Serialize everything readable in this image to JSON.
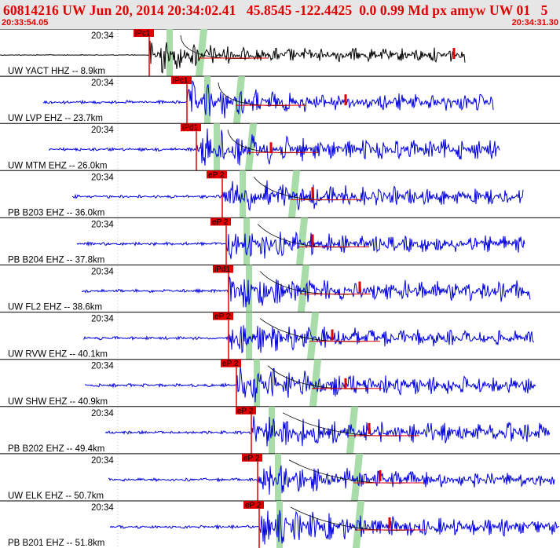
{
  "header": {
    "title": "60814216 UW Jun 20, 2014 20:34:02.41   45.8545 -122.4425  0.0 0.99 Md px amyw UW 01   5",
    "start_time": "20:33:54.05",
    "end_time": "20:34:31.30"
  },
  "colors": {
    "header_bg": "#e6e6e6",
    "header_text": "#e00000",
    "trace_blue": "#0000dd",
    "trace_black": "#000000",
    "pick_red": "#e00000",
    "window_green": "#a8dca8"
  },
  "time_tick_label": "20:34",
  "traces": [
    {
      "station": "UW YACT HHZ -- 8.9km",
      "pick": "iPc1",
      "color": "black"
    },
    {
      "station": "UW LVP EHZ -- 23.7km",
      "pick": "iPc1",
      "color": "blue"
    },
    {
      "station": "UW MTM EHZ -- 26.0km",
      "pick": "iPd1",
      "color": "blue"
    },
    {
      "station": "PB B203 EHZ -- 36.0km",
      "pick": "eP 2",
      "color": "blue"
    },
    {
      "station": "PB B204 EHZ -- 37.8km",
      "pick": "eP 2",
      "color": "blue"
    },
    {
      "station": "UW FL2 EHZ -- 38.6km",
      "pick": "iPd1",
      "color": "blue"
    },
    {
      "station": "UW RVW EHZ -- 40.1km",
      "pick": "eP 2",
      "color": "blue"
    },
    {
      "station": "UW SHW EHZ -- 40.9km",
      "pick": "eP 2",
      "color": "blue"
    },
    {
      "station": "PB B202 EHZ -- 49.4km",
      "pick": "eP 2",
      "color": "blue"
    },
    {
      "station": "UW ELK EHZ -- 50.7km",
      "pick": "eP 2",
      "color": "blue"
    },
    {
      "station": "PB B201 EHZ -- 51.8km",
      "pick": "eP 2",
      "color": "blue"
    }
  ]
}
